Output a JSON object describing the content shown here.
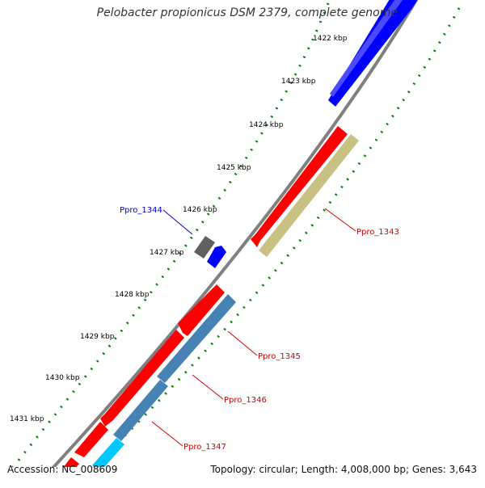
{
  "title": "Pelobacter propionicus DSM 2379, complete genome",
  "footer": {
    "accession": "Accession: NC_008609",
    "summary": "Topology: circular; Length: 4,008,000 bp; Genes: 3,643"
  },
  "ticks": [
    {
      "label": "1422 kbp"
    },
    {
      "label": "1423 kbp"
    },
    {
      "label": "1424 kbp"
    },
    {
      "label": "1425 kbp"
    },
    {
      "label": "1426 kbp"
    },
    {
      "label": "1427 kbp"
    },
    {
      "label": "1428 kbp"
    },
    {
      "label": "1429 kbp"
    },
    {
      "label": "1430 kbp"
    },
    {
      "label": "1431 kbp"
    }
  ],
  "gene_labels": [
    {
      "text": "Ppro_1344",
      "color": "#0000cc"
    },
    {
      "text": "Ppro_1343",
      "color": "#cc0000"
    },
    {
      "text": "Ppro_1345",
      "color": "#cc0000"
    },
    {
      "text": "Ppro_1346",
      "color": "#cc0000"
    },
    {
      "text": "Ppro_1347",
      "color": "#cc0000"
    }
  ],
  "colors": {
    "backbone": "#808080",
    "forward_gene": "#0000ff",
    "reverse_gene": "#ff0000",
    "cog_khaki": "#c8c183",
    "cog_steelblue": "#4682b4",
    "cog_cyan": "#00c8ff",
    "pseudo_gray": "#606060",
    "tick_dots": "#008000"
  }
}
